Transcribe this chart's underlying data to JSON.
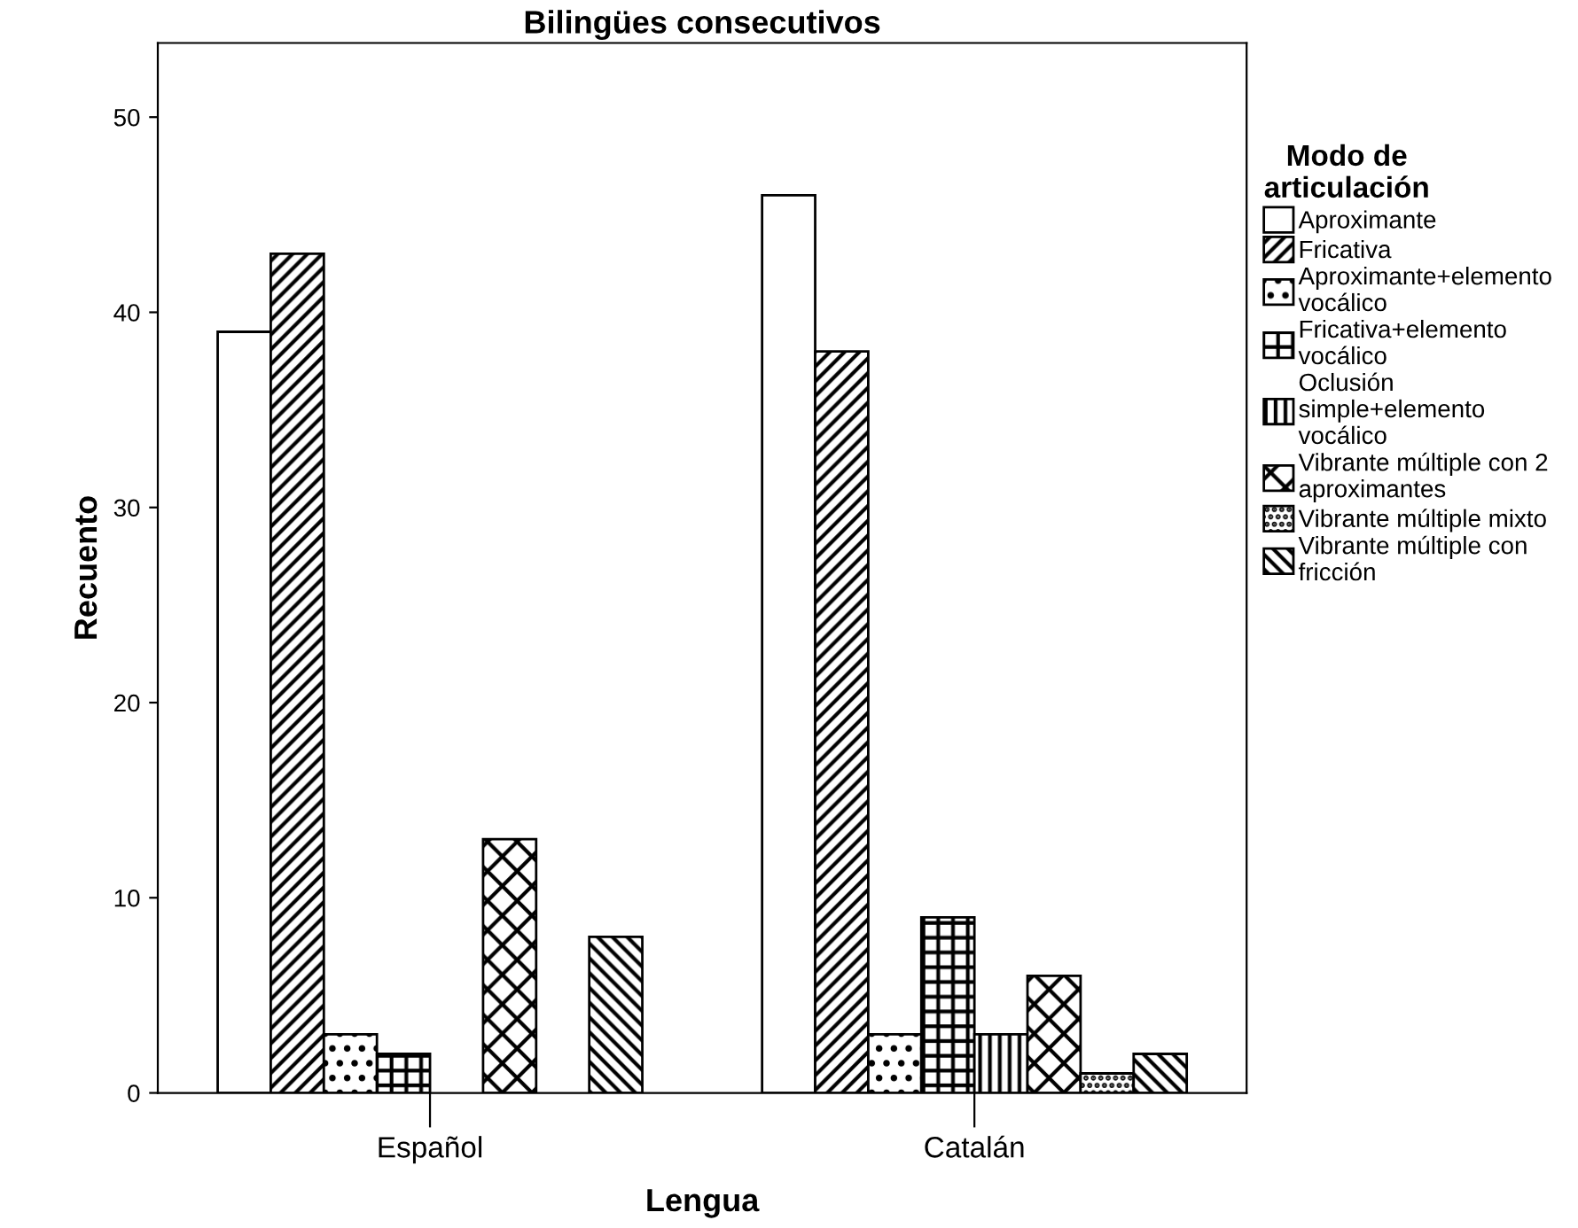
{
  "chart_data": {
    "type": "bar",
    "title": "Bilingües consecutivos",
    "xlabel": "Lengua",
    "ylabel": "Recuento",
    "legend_title": "Modo de\narticulación",
    "categories": [
      "Español",
      "Catalán"
    ],
    "series": [
      {
        "name": "Aproximante",
        "color": "#ffffff",
        "values": [
          39,
          46
        ]
      },
      {
        "name": "Fricativa",
        "color": "#000000",
        "values": [
          43,
          38
        ]
      },
      {
        "name": "Aproximante+elemento\nvocálico",
        "color": "#000000",
        "values": [
          3,
          3
        ]
      },
      {
        "name": "Fricativa+elemento\nvocálico",
        "color": "#000000",
        "values": [
          2,
          9
        ]
      },
      {
        "name": "Oclusión\nsimple+elemento\nvocálico",
        "color": "#000000",
        "values": [
          null,
          3
        ]
      },
      {
        "name": "Vibrante múltiple con 2\naproximantes",
        "color": "#000000",
        "values": [
          13,
          6
        ]
      },
      {
        "name": "Vibrante múltiple mixto",
        "color": "#000000",
        "values": [
          null,
          1
        ]
      },
      {
        "name": "Vibrante múltiple con\nfricción",
        "color": "#000000",
        "values": [
          8,
          2
        ]
      }
    ],
    "ylim": [
      0,
      53.8
    ],
    "yticks": [
      0,
      10,
      20,
      30,
      40,
      50
    ],
    "grid": false,
    "legend": "right"
  }
}
